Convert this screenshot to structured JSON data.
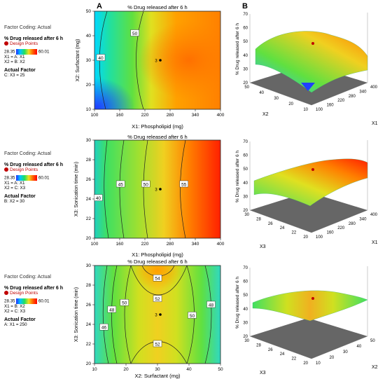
{
  "panel_labels": {
    "a": "A",
    "b": "B"
  },
  "legends": [
    {
      "coding": "Factor Coding: Actual",
      "response": "% Drug released after 6 h",
      "design_points": "Design Points",
      "low": "28.35",
      "high": "60.01",
      "x1": "X1 = A: X1",
      "x2": "X2 = B: X2",
      "actual_factor": "Actual Factor",
      "fixed": "C: X3 = 25"
    },
    {
      "coding": "Factor Coding: Actual",
      "response": "% Drug released after 6 h",
      "design_points": "Design Points",
      "low": "28.35",
      "high": "60.01",
      "x1": "X1 = A: X1",
      "x2": "X2 = C: X3",
      "actual_factor": "Actual Factor",
      "fixed": "B: X2 = 30"
    },
    {
      "coding": "Factor Coding: Actual",
      "response": "% Drug released after 6 h",
      "design_points": "Design Points",
      "low": "28.35",
      "high": "60.01",
      "x1": "X1 = B: X2",
      "x2": "X2 = C: X3",
      "actual_factor": "Actual Factor",
      "fixed": "A: X1 = 250"
    }
  ],
  "colors": {
    "low": "#2030ff",
    "mid": "#20e060",
    "high": "#ff0000",
    "design_point": "#c00000"
  },
  "chart_data": [
    {
      "type": "contour",
      "title": "% Drug released after 6 h",
      "xlabel": "X1: Phospholipid (mg)",
      "ylabel": "X2: Surfactant (mg)",
      "xticks": [
        100,
        160,
        220,
        280,
        340,
        400
      ],
      "yticks": [
        10,
        20,
        30,
        40,
        50
      ],
      "xlim": [
        100,
        400
      ],
      "ylim": [
        10,
        50
      ],
      "contour_labels": [
        {
          "x": 115,
          "y": 31,
          "text": "40"
        },
        {
          "x": 196,
          "y": 41,
          "text": "50"
        }
      ],
      "center_point": {
        "x": 250,
        "y": 30,
        "label": "3"
      }
    },
    {
      "type": "contour",
      "title": "% Drug released after 6 h",
      "xlabel": "X1: Phospholipid (mg)",
      "ylabel": "X3: Sonication time (min)",
      "xticks": [
        100,
        160,
        220,
        280,
        340,
        400
      ],
      "yticks": [
        20,
        22,
        24,
        26,
        28,
        30
      ],
      "xlim": [
        100,
        400
      ],
      "ylim": [
        20,
        30
      ],
      "contour_labels": [
        {
          "x": 109,
          "y": 24.1,
          "text": "40"
        },
        {
          "x": 162,
          "y": 25.5,
          "text": "45"
        },
        {
          "x": 222,
          "y": 25.5,
          "text": "50"
        },
        {
          "x": 313,
          "y": 25.5,
          "text": "55"
        }
      ],
      "center_point": {
        "x": 250,
        "y": 25,
        "label": "3"
      }
    },
    {
      "type": "contour",
      "title": "% Drug released after 6 h",
      "xlabel": "X2: Surfactant (mg)",
      "ylabel": "X3: Sonication time (min)",
      "xticks": [
        10,
        20,
        30,
        40,
        50
      ],
      "yticks": [
        20,
        22,
        24,
        26,
        28,
        30
      ],
      "xlim": [
        10,
        50
      ],
      "ylim": [
        20,
        30
      ],
      "contour_labels": [
        {
          "x": 13,
          "y": 23.7,
          "text": "46"
        },
        {
          "x": 15.5,
          "y": 25.5,
          "text": "48"
        },
        {
          "x": 19.5,
          "y": 26.2,
          "text": "50"
        },
        {
          "x": 30,
          "y": 28.7,
          "text": "54"
        },
        {
          "x": 30,
          "y": 26.6,
          "text": "52"
        },
        {
          "x": 30,
          "y": 22.0,
          "text": "52"
        },
        {
          "x": 41,
          "y": 24.9,
          "text": "50"
        },
        {
          "x": 47,
          "y": 26.0,
          "text": "48"
        }
      ],
      "center_point": {
        "x": 30,
        "y": 25,
        "label": "3"
      }
    },
    {
      "type": "surface",
      "zlabel": "% Drug released after 6 h",
      "xaxis": "X1",
      "yaxis": "X2",
      "zticks": [
        20,
        30,
        40,
        50,
        60,
        70
      ],
      "xticks": [
        100,
        160,
        220,
        280,
        340,
        400
      ],
      "yticks": [
        10,
        20,
        30,
        40,
        50
      ]
    },
    {
      "type": "surface",
      "zlabel": "% Drug released after 6 h",
      "xaxis": "X1",
      "yaxis": "X3",
      "zticks": [
        20,
        30,
        40,
        50,
        60,
        70
      ],
      "xticks": [
        100,
        160,
        220,
        280,
        340,
        400
      ],
      "yticks": [
        20,
        22,
        24,
        26,
        28,
        30
      ]
    },
    {
      "type": "surface",
      "zlabel": "% Drug released after 6 h",
      "xaxis": "X2",
      "yaxis": "X3",
      "zticks": [
        20,
        30,
        40,
        50,
        60,
        70
      ],
      "xticks": [
        10,
        20,
        30,
        40,
        50
      ],
      "yticks": [
        20,
        22,
        24,
        26,
        28,
        30
      ]
    }
  ]
}
